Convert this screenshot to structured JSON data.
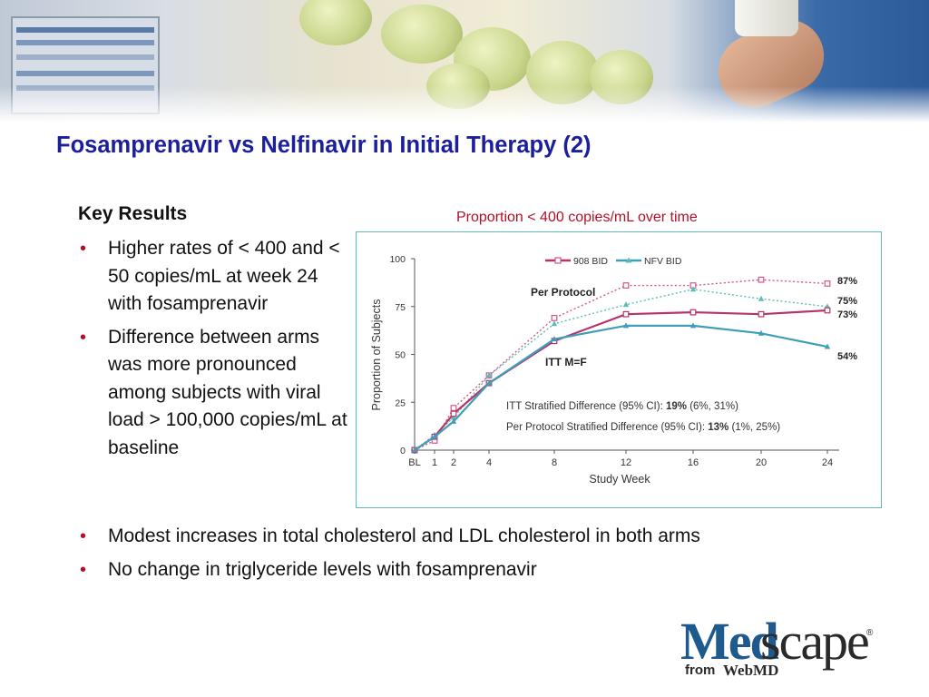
{
  "slide": {
    "title": "Fosamprenavir vs Nelfinavir in Initial Therapy (2)",
    "key_results_heading": "Key Results",
    "bullets_top": [
      "Higher rates of < 400 and < 50 copies/mL at week 24 with fosamprenavir",
      "Difference between arms was more pronounced among subjects with viral load > 100,000 copies/mL at baseline"
    ],
    "bullets_bottom": [
      "Modest increases in total cholesterol and LDL cholesterol in both arms",
      "No change in triglyceride levels with fosamprenavir"
    ],
    "bullet_symbol": "•",
    "chart_caption": "Proportion < 400 copies/mL over time",
    "accent_color": "#b0102a",
    "title_color": "#1c1f9c"
  },
  "logo": {
    "med": "Med",
    "scape": "scape",
    "reg": "®",
    "from": "from",
    "webmd": "WebMD"
  },
  "chart_data": {
    "type": "line",
    "categories": [
      "BL",
      "1",
      "2",
      "4",
      "8",
      "12",
      "16",
      "20",
      "24"
    ],
    "xlabel": "Study Week",
    "ylabel": "Proportion of Subjects",
    "ylim": [
      0,
      100
    ],
    "yticks": [
      0,
      25,
      50,
      75,
      100
    ],
    "grid": false,
    "legend_position": "top",
    "series": [
      {
        "name": "908 BID",
        "group": "Per Protocol",
        "style": "dotted",
        "marker": "square",
        "color": "#d0588a",
        "values": [
          0,
          5,
          22,
          39,
          69,
          86,
          86,
          89,
          87
        ],
        "end_label": "87%"
      },
      {
        "name": "NFV BID",
        "group": "Per Protocol",
        "style": "dotted",
        "marker": "triangle",
        "color": "#5dbcb8",
        "values": [
          0,
          8,
          17,
          39,
          66,
          76,
          84,
          79,
          75
        ],
        "end_label": "75%"
      },
      {
        "name": "908 BID",
        "group": "ITT M=F",
        "style": "solid",
        "marker": "square",
        "color": "#b8336a",
        "values": [
          0,
          7,
          19,
          35,
          57,
          71,
          72,
          71,
          73
        ],
        "end_label": "73%"
      },
      {
        "name": "NFV BID",
        "group": "ITT M=F",
        "style": "solid",
        "marker": "triangle",
        "color": "#3e9fb8",
        "values": [
          0,
          7,
          15,
          35,
          58,
          65,
          65,
          61,
          54
        ],
        "end_label": "54%"
      }
    ],
    "annotations": {
      "per_protocol": "Per Protocol",
      "itt": "ITT M=F",
      "itt_diff_prefix": "ITT Stratified Difference (95% CI): ",
      "itt_diff_bold": "19%",
      "itt_diff_suffix": " (6%, 31%)",
      "pp_diff_prefix": "Per Protocol Stratified Difference (95% CI): ",
      "pp_diff_bold": "13%",
      "pp_diff_suffix": " (1%, 25%)"
    }
  }
}
